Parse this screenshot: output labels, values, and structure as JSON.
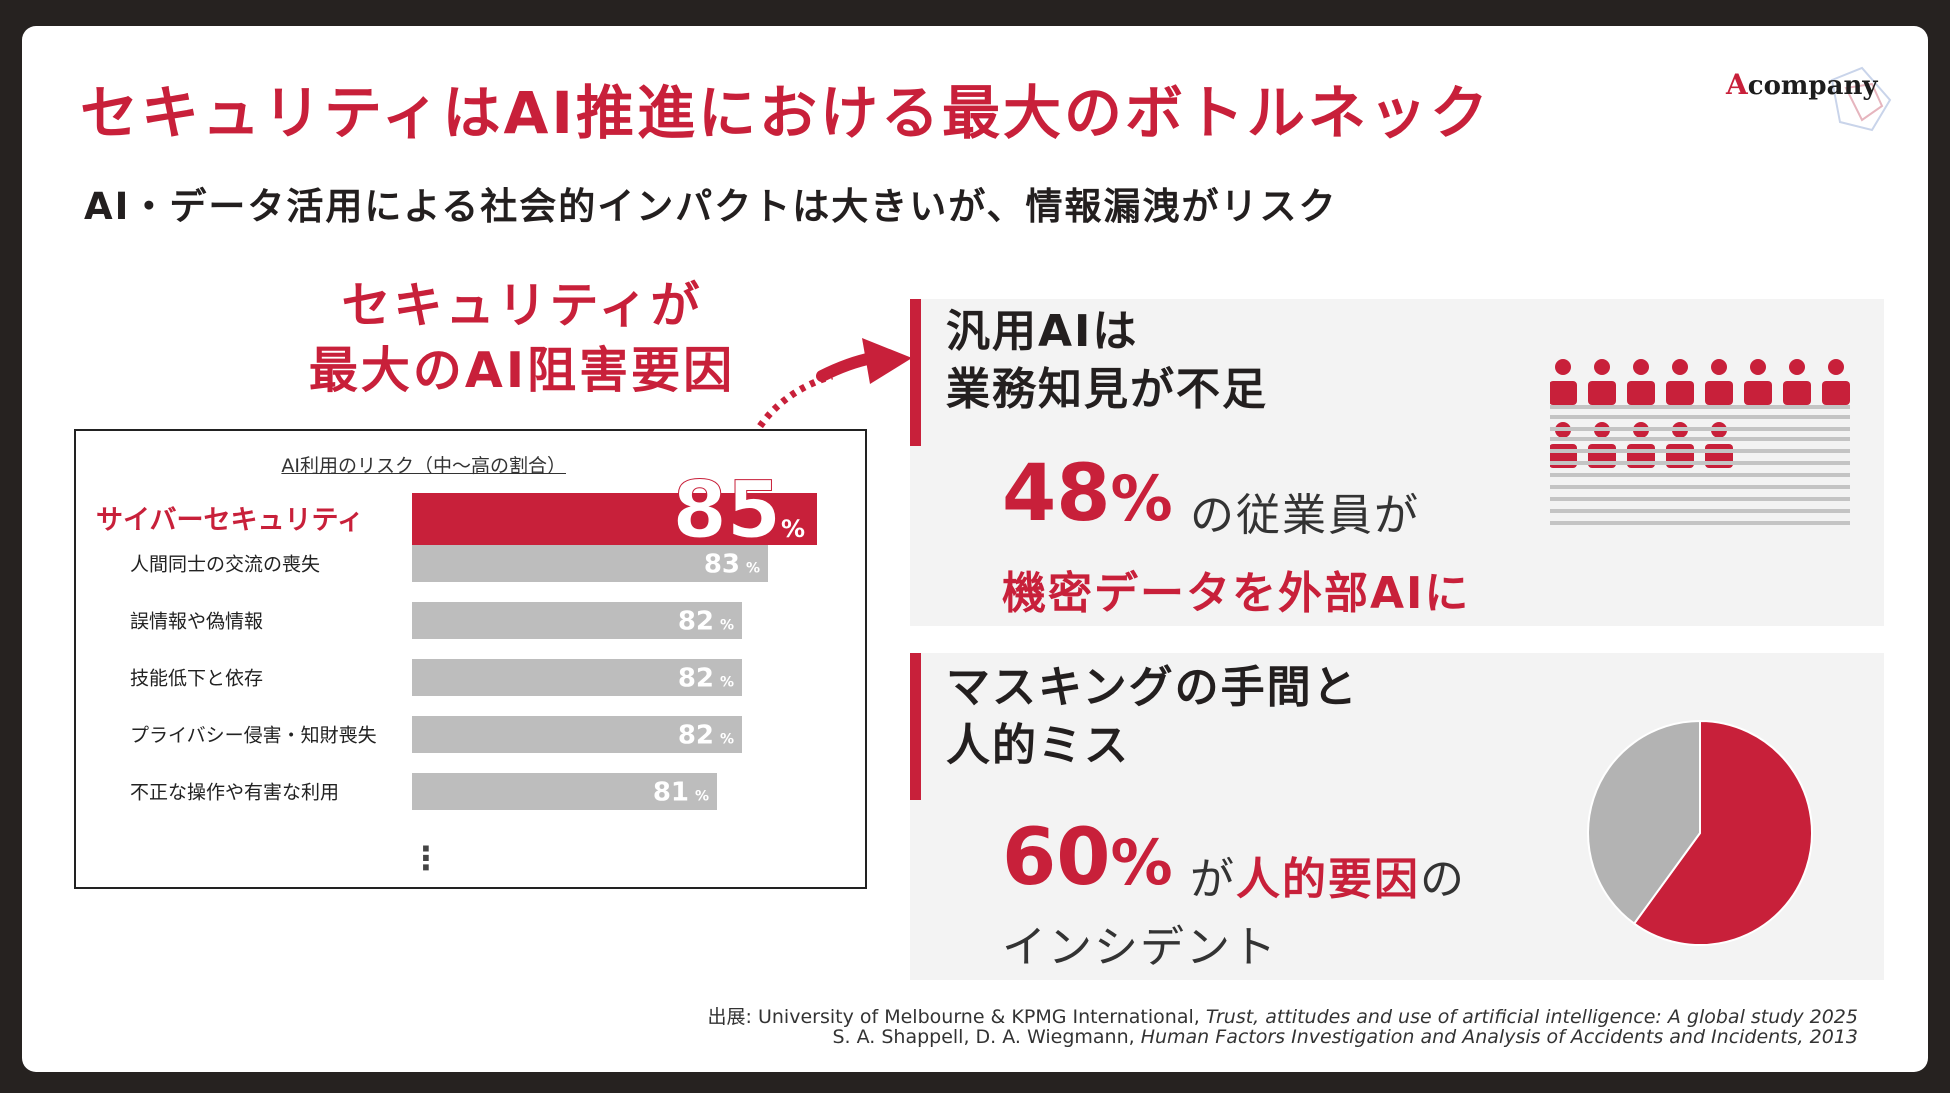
{
  "slide": {
    "title": "セキュリティはAI推進における最大のボトルネック",
    "subtitle": "AI・データ活用による社会的インパクトは大きいが、情報漏洩がリスク",
    "logo": {
      "text": "company",
      "mark": "A",
      "brand_color": "#c8203a"
    },
    "lead": {
      "line1": "セキュリティが",
      "line2": "最大のAI阻害要因"
    }
  },
  "chart_data": {
    "type": "bar",
    "orientation": "horizontal",
    "title": "AI利用のリスク（中〜高の割合）",
    "categories": [
      "サイバーセキュリティ",
      "人間同士の交流の喪失",
      "誤情報や偽情報",
      "技能低下と依存",
      "プライバシー侵害・知財喪失",
      "不正な操作や有害な利用"
    ],
    "values": [
      85,
      83,
      82,
      82,
      82,
      81
    ],
    "unit": "%",
    "highlight_index": 0,
    "continuation_marker": "⋮",
    "colors": {
      "highlight": "#c8203a",
      "default": "#bdbdbd"
    }
  },
  "panel1": {
    "heading_line1": "汎用AIは",
    "heading_line2": "業務知見が不足",
    "value": "48",
    "unit": "%",
    "text1": "の従業員が",
    "text2": "機密データを外部AIに",
    "people_icon": "people-seats-icon",
    "people_count": 13
  },
  "panel2": {
    "heading_line1": "マスキングの手間と",
    "heading_line2": "人的ミス",
    "value": "60",
    "unit": "%",
    "text1_pre": "が",
    "text1_highlight": "人的要因",
    "text1_post": "の",
    "text2": "インシデント",
    "pie": {
      "human_factor_share": 0.6,
      "colors": {
        "human": "#c8203a",
        "other": "#b3b3b3"
      }
    }
  },
  "sources": {
    "line1_prefix": "出展: University of Melbourne & KPMG International, ",
    "line1_title": "Trust, attitudes and use of artificial intelligence: A global study 2025",
    "line2_prefix": "S. A. Shappell, D. A. Wiegmann, ",
    "line2_title": "Human Factors Investigation and Analysis of Accidents and Incidents, 2013"
  }
}
